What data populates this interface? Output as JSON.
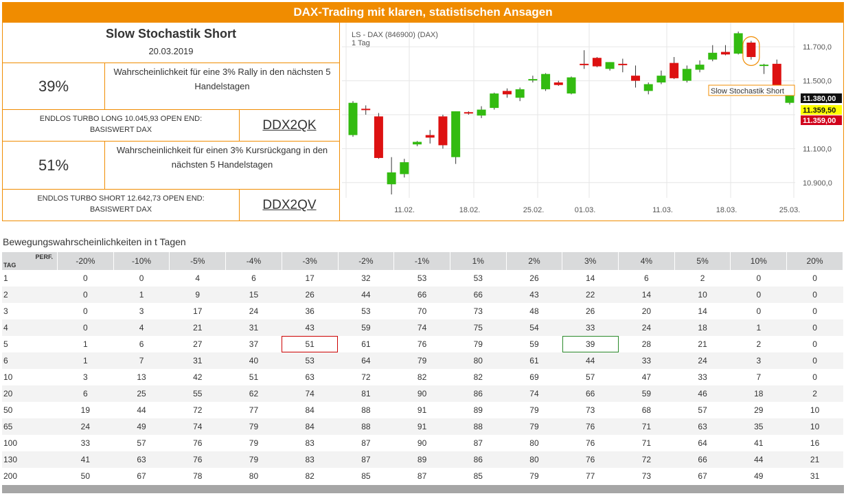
{
  "header": {
    "title": "DAX-Trading mit klaren, statistischen Ansagen"
  },
  "signal": {
    "name": "Slow Stochastik Short",
    "date": "20.03.2019"
  },
  "rally": {
    "percent": "39%",
    "text": "Wahrscheinlichkeit für eine 3% Rally in den nächsten 5 Handelstagen"
  },
  "long_product": {
    "line1": "ENDLOS TURBO LONG 10.045,93 OPEN END:",
    "line2": "BASISWERT DAX",
    "code": "DDX2QK"
  },
  "drop": {
    "percent": "51%",
    "text": "Wahrscheinlichkeit für einen 3% Kursrückgang in den nächsten 5 Handelstagen"
  },
  "short_product": {
    "line1": "ENDLOS TURBO SHORT 12.642,73 OPEN END:",
    "line2": "BASISWERT DAX",
    "code": "DDX2QV"
  },
  "chart": {
    "instrument": "LS - DAX (846900) (DAX)",
    "period": "1 Tag",
    "annotation": "Slow Stochastik Short",
    "y_ticks": [
      "11.700,0",
      "11.500,0",
      "11.100,0",
      "10.900,0"
    ],
    "x_ticks": [
      "11.02.",
      "18.02.",
      "25.02.",
      "01.03.",
      "11.03.",
      "18.03.",
      "25.03."
    ],
    "price_labels": [
      {
        "text": "11.380,00",
        "bg": "#111111",
        "fg": "#ffffff"
      },
      {
        "text": "11.359,50",
        "bg": "#ffff00",
        "fg": "#111111"
      },
      {
        "text": "11.359,00",
        "bg": "#d0021b",
        "fg": "#ffffff"
      }
    ],
    "colors": {
      "up": "#33bb11",
      "down": "#dd1111"
    }
  },
  "chart_data": {
    "type": "candlestick",
    "ylim": [
      10810,
      11810
    ],
    "candles": [
      {
        "o": 11180,
        "h": 11380,
        "l": 11170,
        "c": 11370
      },
      {
        "o": 11335,
        "h": 11355,
        "l": 11300,
        "c": 11330
      },
      {
        "o": 11290,
        "h": 11310,
        "l": 11040,
        "c": 11045
      },
      {
        "o": 10890,
        "h": 11050,
        "l": 10830,
        "c": 10960
      },
      {
        "o": 10950,
        "h": 11040,
        "l": 10930,
        "c": 11020
      },
      {
        "o": 11125,
        "h": 11145,
        "l": 11115,
        "c": 11140
      },
      {
        "o": 11180,
        "h": 11210,
        "l": 11130,
        "c": 11165
      },
      {
        "o": 11290,
        "h": 11300,
        "l": 11100,
        "c": 11120
      },
      {
        "o": 11050,
        "h": 11320,
        "l": 11010,
        "c": 11320
      },
      {
        "o": 11315,
        "h": 11320,
        "l": 11300,
        "c": 11310
      },
      {
        "o": 11295,
        "h": 11350,
        "l": 11280,
        "c": 11330
      },
      {
        "o": 11340,
        "h": 11430,
        "l": 11330,
        "c": 11425
      },
      {
        "o": 11440,
        "h": 11455,
        "l": 11400,
        "c": 11420
      },
      {
        "o": 11400,
        "h": 11460,
        "l": 11380,
        "c": 11450
      },
      {
        "o": 11510,
        "h": 11530,
        "l": 11490,
        "c": 11510
      },
      {
        "o": 11450,
        "h": 11545,
        "l": 11440,
        "c": 11540
      },
      {
        "o": 11490,
        "h": 11500,
        "l": 11470,
        "c": 11475
      },
      {
        "o": 11425,
        "h": 11525,
        "l": 11420,
        "c": 11520
      },
      {
        "o": 11600,
        "h": 11680,
        "l": 11570,
        "c": 11595
      },
      {
        "o": 11635,
        "h": 11640,
        "l": 11580,
        "c": 11585
      },
      {
        "o": 11570,
        "h": 11610,
        "l": 11560,
        "c": 11610
      },
      {
        "o": 11600,
        "h": 11630,
        "l": 11550,
        "c": 11595
      },
      {
        "o": 11530,
        "h": 11590,
        "l": 11460,
        "c": 11500
      },
      {
        "o": 11440,
        "h": 11490,
        "l": 11420,
        "c": 11480
      },
      {
        "o": 11490,
        "h": 11560,
        "l": 11480,
        "c": 11530
      },
      {
        "o": 11605,
        "h": 11640,
        "l": 11510,
        "c": 11515
      },
      {
        "o": 11500,
        "h": 11590,
        "l": 11490,
        "c": 11570
      },
      {
        "o": 11565,
        "h": 11620,
        "l": 11550,
        "c": 11595
      },
      {
        "o": 11625,
        "h": 11710,
        "l": 11615,
        "c": 11665
      },
      {
        "o": 11670,
        "h": 11710,
        "l": 11650,
        "c": 11655
      },
      {
        "o": 11660,
        "h": 11790,
        "l": 11655,
        "c": 11780
      },
      {
        "o": 11725,
        "h": 11735,
        "l": 11625,
        "c": 11640
      },
      {
        "o": 11590,
        "h": 11600,
        "l": 11540,
        "c": 11595
      },
      {
        "o": 11600,
        "h": 11625,
        "l": 11420,
        "c": 11420
      },
      {
        "o": 11370,
        "h": 11425,
        "l": 11360,
        "c": 11420
      }
    ]
  },
  "table": {
    "title": "Bewegungswahrscheinlichkeiten in t Tagen",
    "corner_top": "PERF.",
    "corner_bottom": "TAG",
    "columns": [
      "-20%",
      "-10%",
      "-5%",
      "-4%",
      "-3%",
      "-2%",
      "-1%",
      "1%",
      "2%",
      "3%",
      "4%",
      "5%",
      "10%",
      "20%"
    ],
    "rows": [
      {
        "tag": "1",
        "values": [
          "0",
          "0",
          "4",
          "6",
          "17",
          "32",
          "53",
          "53",
          "26",
          "14",
          "6",
          "2",
          "0",
          "0"
        ]
      },
      {
        "tag": "2",
        "values": [
          "0",
          "1",
          "9",
          "15",
          "26",
          "44",
          "66",
          "66",
          "43",
          "22",
          "14",
          "10",
          "0",
          "0"
        ]
      },
      {
        "tag": "3",
        "values": [
          "0",
          "3",
          "17",
          "24",
          "36",
          "53",
          "70",
          "73",
          "48",
          "26",
          "20",
          "14",
          "0",
          "0"
        ]
      },
      {
        "tag": "4",
        "values": [
          "0",
          "4",
          "21",
          "31",
          "43",
          "59",
          "74",
          "75",
          "54",
          "33",
          "24",
          "18",
          "1",
          "0"
        ]
      },
      {
        "tag": "5",
        "values": [
          "1",
          "6",
          "27",
          "37",
          "51",
          "61",
          "76",
          "79",
          "59",
          "39",
          "28",
          "21",
          "2",
          "0"
        ]
      },
      {
        "tag": "6",
        "values": [
          "1",
          "7",
          "31",
          "40",
          "53",
          "64",
          "79",
          "80",
          "61",
          "44",
          "33",
          "24",
          "3",
          "0"
        ]
      },
      {
        "tag": "10",
        "values": [
          "3",
          "13",
          "42",
          "51",
          "63",
          "72",
          "82",
          "82",
          "69",
          "57",
          "47",
          "33",
          "7",
          "0"
        ]
      },
      {
        "tag": "20",
        "values": [
          "6",
          "25",
          "55",
          "62",
          "74",
          "81",
          "90",
          "86",
          "74",
          "66",
          "59",
          "46",
          "18",
          "2"
        ]
      },
      {
        "tag": "50",
        "values": [
          "19",
          "44",
          "72",
          "77",
          "84",
          "88",
          "91",
          "89",
          "79",
          "73",
          "68",
          "57",
          "29",
          "10"
        ]
      },
      {
        "tag": "65",
        "values": [
          "24",
          "49",
          "74",
          "79",
          "84",
          "88",
          "91",
          "88",
          "79",
          "76",
          "71",
          "63",
          "35",
          "10"
        ]
      },
      {
        "tag": "100",
        "values": [
          "33",
          "57",
          "76",
          "79",
          "83",
          "87",
          "90",
          "87",
          "80",
          "76",
          "71",
          "64",
          "41",
          "16"
        ]
      },
      {
        "tag": "130",
        "values": [
          "41",
          "63",
          "76",
          "79",
          "83",
          "87",
          "89",
          "86",
          "80",
          "76",
          "72",
          "66",
          "44",
          "21"
        ]
      },
      {
        "tag": "200",
        "values": [
          "50",
          "67",
          "78",
          "80",
          "82",
          "85",
          "87",
          "85",
          "79",
          "77",
          "73",
          "67",
          "49",
          "31"
        ]
      }
    ]
  }
}
